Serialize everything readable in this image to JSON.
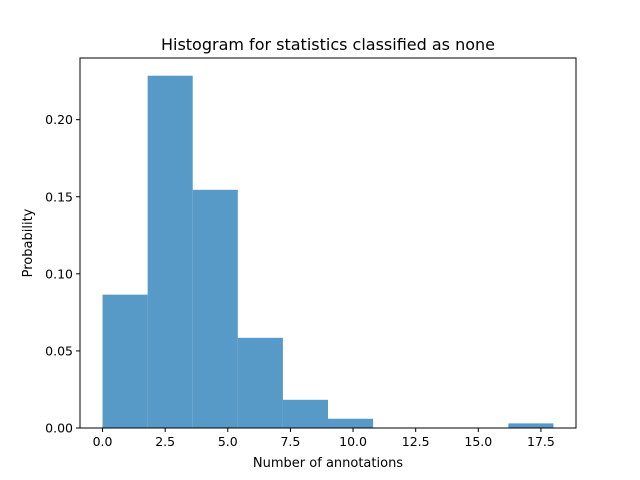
{
  "chart_data": {
    "type": "bar",
    "title": "Histogram for statistics classified as none",
    "xlabel": "Number of annotations",
    "ylabel": "Probability",
    "xlim": [
      -0.9,
      18.9
    ],
    "ylim": [
      0.0,
      0.24
    ],
    "bar_color": "#5799c7",
    "grid": false,
    "bins": [
      {
        "x0": 0.0,
        "x1": 1.8,
        "value": 0.0865
      },
      {
        "x0": 1.8,
        "x1": 3.6,
        "value": 0.2285
      },
      {
        "x0": 3.6,
        "x1": 5.4,
        "value": 0.1545
      },
      {
        "x0": 5.4,
        "x1": 7.2,
        "value": 0.0585
      },
      {
        "x0": 7.2,
        "x1": 9.0,
        "value": 0.0183
      },
      {
        "x0": 9.0,
        "x1": 10.8,
        "value": 0.006
      },
      {
        "x0": 10.8,
        "x1": 12.6,
        "value": 0.0
      },
      {
        "x0": 12.6,
        "x1": 14.4,
        "value": 0.0
      },
      {
        "x0": 14.4,
        "x1": 16.2,
        "value": 0.0
      },
      {
        "x0": 16.2,
        "x1": 18.0,
        "value": 0.003
      }
    ],
    "x_ticks": [
      {
        "value": 0.0,
        "label": "0.0"
      },
      {
        "value": 2.5,
        "label": "2.5"
      },
      {
        "value": 5.0,
        "label": "5.0"
      },
      {
        "value": 7.5,
        "label": "7.5"
      },
      {
        "value": 10.0,
        "label": "10.0"
      },
      {
        "value": 12.5,
        "label": "12.5"
      },
      {
        "value": 15.0,
        "label": "15.0"
      },
      {
        "value": 17.5,
        "label": "17.5"
      }
    ],
    "y_ticks": [
      {
        "value": 0.0,
        "label": "0.00"
      },
      {
        "value": 0.05,
        "label": "0.05"
      },
      {
        "value": 0.1,
        "label": "0.10"
      },
      {
        "value": 0.15,
        "label": "0.15"
      },
      {
        "value": 0.2,
        "label": "0.20"
      }
    ]
  }
}
